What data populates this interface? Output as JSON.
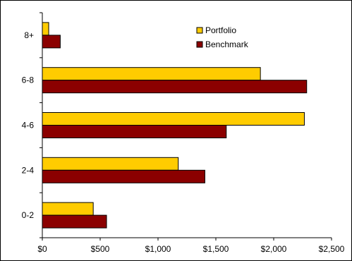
{
  "chart_data": {
    "type": "bar",
    "orientation": "horizontal",
    "categories": [
      "0-2",
      "2-4",
      "4-6",
      "6-8",
      "8+"
    ],
    "series": [
      {
        "name": "Portfolio",
        "values": [
          440,
          1175,
          2265,
          1885,
          55
        ],
        "color": "#FFCC00"
      },
      {
        "name": "Benchmark",
        "values": [
          555,
          1405,
          1590,
          2285,
          155
        ],
        "color": "#8B0000"
      }
    ],
    "xlim": [
      0,
      2500
    ],
    "xticks": [
      0,
      500,
      1000,
      1500,
      2000,
      2500
    ],
    "xtick_labels": [
      "$0",
      "$500",
      "$1,000",
      "$1,500",
      "$2,000",
      "$2,500"
    ],
    "grid": false,
    "legend_position": "top-right"
  }
}
